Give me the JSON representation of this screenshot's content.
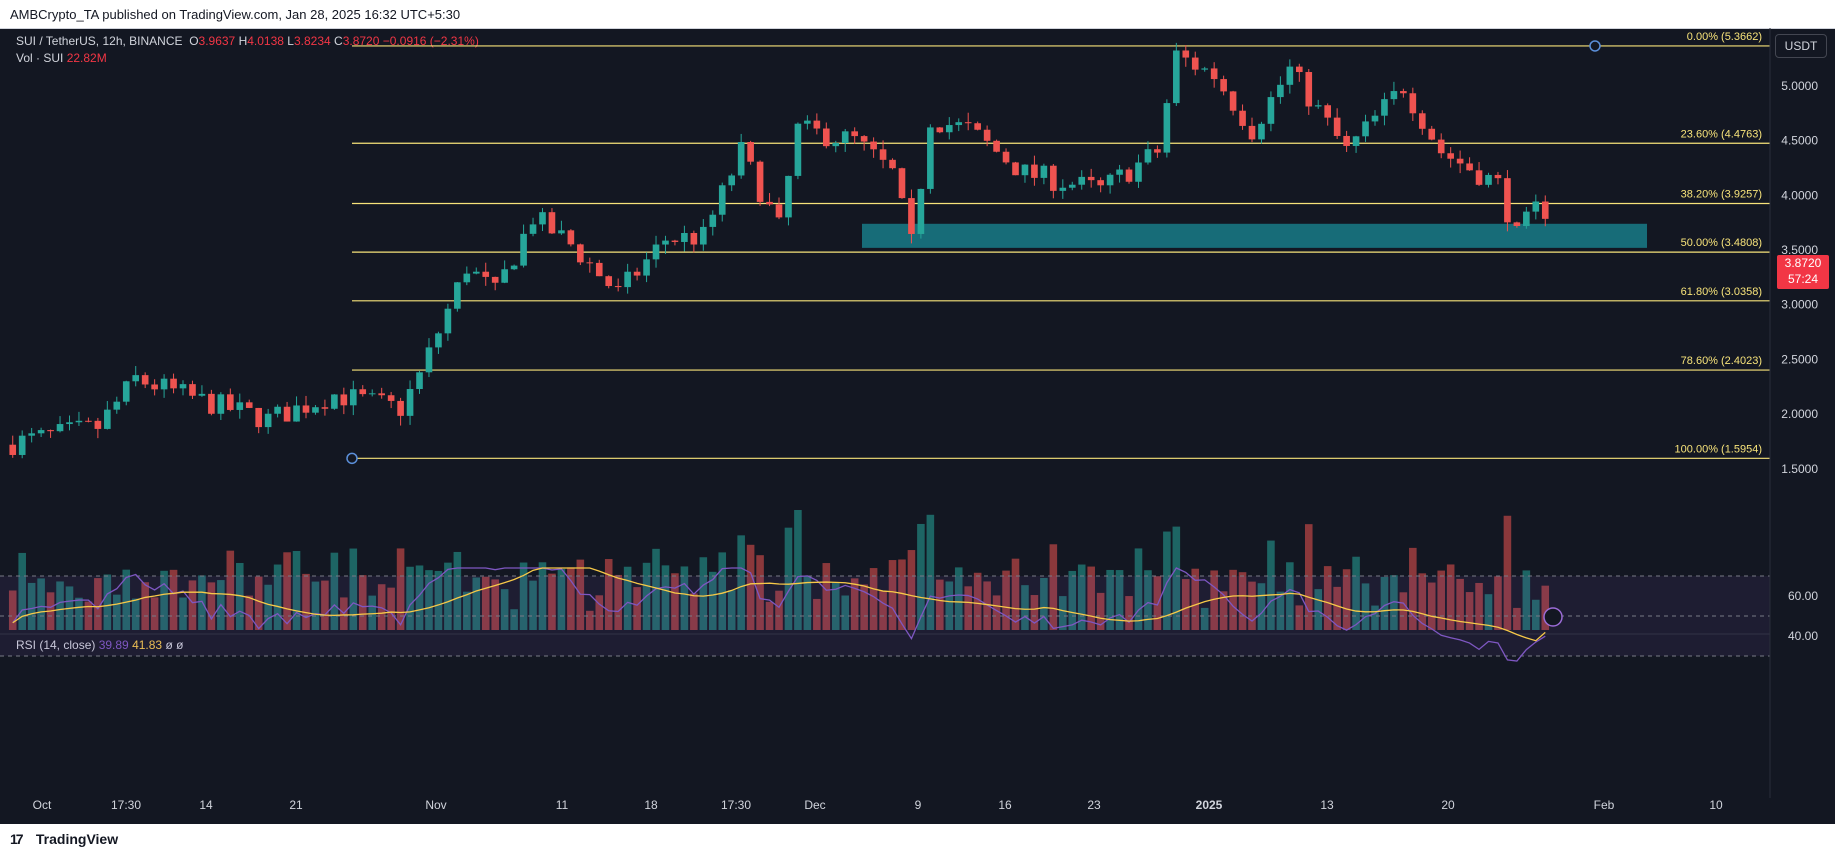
{
  "header": {
    "publisher": "AMBCrypto_TA published on TradingView.com, Jan 28, 2025 16:32 UTC+5:30"
  },
  "legend": {
    "symbol": "SUI / TetherUS, 12h, BINANCE",
    "o_label": "O",
    "o": "3.9637",
    "h_label": "H",
    "h": "4.0138",
    "l_label": "L",
    "l": "3.8234",
    "c_label": "C",
    "c": "3.8720",
    "change": "−0.0916 (−2.31%)",
    "vol_label": "Vol · SUI",
    "vol": "22.82M"
  },
  "rsi_legend": {
    "label": "RSI (14, close)",
    "value": "39.89",
    "ma": "41.83",
    "x1": "ø",
    "x2": "ø"
  },
  "currency_button": "USDT",
  "last_price": {
    "price": "3.8720",
    "countdown": "57:24"
  },
  "footer": {
    "brand": "TradingView"
  },
  "colors": {
    "bull": "#26a69a",
    "bear": "#ef5350",
    "fib": "#f7e37a",
    "zone": "#1a8a96",
    "rsi": "#7e57c2",
    "rsi_ma": "#f7c948",
    "bg": "#131722"
  },
  "chart_data": {
    "type": "candlestick",
    "title": "SUI / TetherUS, 12h, BINANCE",
    "x_ticks": [
      "Oct",
      "17:30",
      "14",
      "21",
      "Nov",
      "11",
      "18",
      "17:30",
      "Dec",
      "9",
      "16",
      "23",
      "2025",
      "13",
      "20",
      "Feb",
      "10"
    ],
    "y_ticks": [
      "5.0000",
      "4.5000",
      "4.0000",
      "3.5000",
      "3.0000",
      "2.5000",
      "2.0000",
      "1.5000"
    ],
    "ylim": [
      1.05,
      5.55
    ],
    "fib_levels": [
      {
        "label": "0.00% (5.3662)",
        "value": 5.3662
      },
      {
        "label": "23.60% (4.4763)",
        "value": 4.4763
      },
      {
        "label": "38.20% (3.9257)",
        "value": 3.9257
      },
      {
        "label": "50.00% (3.4808)",
        "value": 3.4808
      },
      {
        "label": "61.80% (3.0358)",
        "value": 3.0358
      },
      {
        "label": "78.60% (2.4023)",
        "value": 2.4023
      },
      {
        "label": "100.00% (1.5954)",
        "value": 1.5954
      }
    ],
    "support_zone": [
      3.52,
      3.74
    ],
    "price_path": [
      [
        0,
        1.72
      ],
      [
        10,
        1.88
      ],
      [
        14,
        2.32
      ],
      [
        21,
        2.12
      ],
      [
        28,
        1.95
      ],
      [
        35,
        2.18
      ],
      [
        42,
        2.05
      ],
      [
        44,
        2.35
      ],
      [
        49,
        3.35
      ],
      [
        52,
        3.1
      ],
      [
        56,
        3.8
      ],
      [
        60,
        3.55
      ],
      [
        65,
        3.1
      ],
      [
        70,
        3.6
      ],
      [
        74,
        3.62
      ],
      [
        78,
        4.4
      ],
      [
        82,
        3.7
      ],
      [
        84,
        4.6
      ],
      [
        90,
        4.5
      ],
      [
        94,
        4.2
      ],
      [
        96,
        3.55
      ],
      [
        98,
        4.7
      ],
      [
        102,
        4.6
      ],
      [
        108,
        4.2
      ],
      [
        116,
        4.05
      ],
      [
        122,
        4.4
      ],
      [
        124,
        5.28
      ],
      [
        128,
        5.1
      ],
      [
        132,
        4.6
      ],
      [
        136,
        5.15
      ],
      [
        142,
        4.4
      ],
      [
        148,
        5.0
      ],
      [
        152,
        4.4
      ],
      [
        158,
        4.1
      ],
      [
        160,
        3.62
      ],
      [
        162,
        3.87
      ]
    ],
    "rsi": {
      "ylim": [
        25,
        75
      ],
      "levels": [
        70,
        50,
        30
      ],
      "y_ticks": [
        "60.00",
        "40.00"
      ],
      "current": 39.89,
      "ma": 41.83
    },
    "volume": {
      "current": "22.82M"
    }
  }
}
